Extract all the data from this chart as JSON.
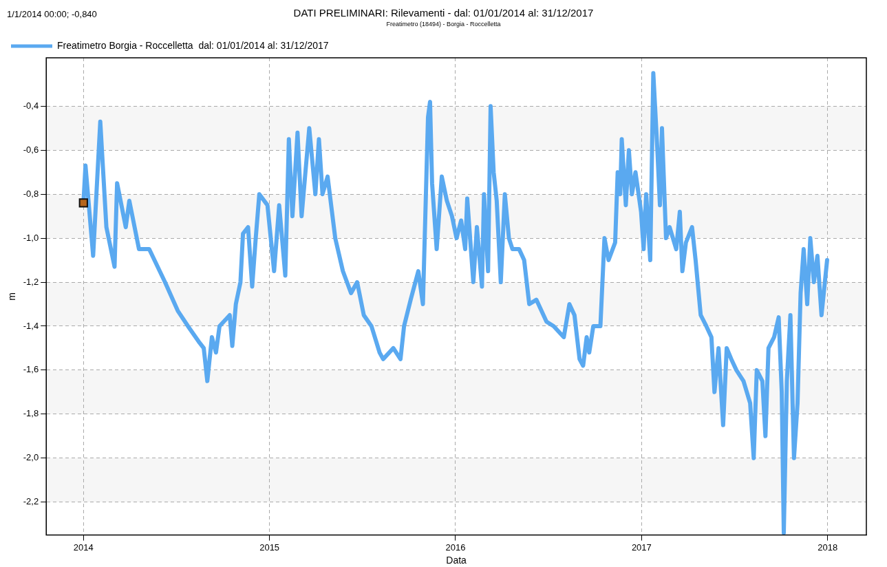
{
  "chart_data": {
    "type": "line",
    "title": "DATI PRELIMINARI: Rilevamenti -  dal: 01/01/2014 al: 31/12/2017",
    "subtitle": "Freatimetro (18494)  - Borgia - Roccelletta",
    "xlabel": "Data",
    "ylabel": "m",
    "annotations": [
      "1/1/2014 00:00; -0,840"
    ],
    "x": [
      "2014-01-01",
      "2014-01-05",
      "2014-01-20",
      "2014-02-03",
      "2014-02-15",
      "2014-03-03",
      "2014-03-08",
      "2014-03-25",
      "2014-04-01",
      "2014-04-20",
      "2014-05-10",
      "2014-06-10",
      "2014-07-05",
      "2014-07-25",
      "2014-08-15",
      "2014-08-25",
      "2014-09-01",
      "2014-09-10",
      "2014-09-18",
      "2014-09-25",
      "2014-10-15",
      "2014-10-20",
      "2014-10-27",
      "2014-11-05",
      "2014-11-10",
      "2014-11-20",
      "2014-11-28",
      "2014-12-05",
      "2014-12-12",
      "2014-12-28",
      "2015-01-10",
      "2015-01-20",
      "2015-02-01",
      "2015-02-08",
      "2015-02-15",
      "2015-02-25",
      "2015-03-05",
      "2015-03-20",
      "2015-04-01",
      "2015-04-08",
      "2015-04-15",
      "2015-04-25",
      "2015-05-10",
      "2015-05-25",
      "2015-06-10",
      "2015-06-22",
      "2015-07-05",
      "2015-07-20",
      "2015-08-05",
      "2015-08-12",
      "2015-09-01",
      "2015-09-15",
      "2015-09-22",
      "2015-10-05",
      "2015-10-20",
      "2015-10-29",
      "2015-11-08",
      "2015-11-12",
      "2015-11-16",
      "2015-11-25",
      "2015-12-05",
      "2015-12-15",
      "2015-12-25",
      "2016-01-03",
      "2016-01-12",
      "2016-01-20",
      "2016-01-24",
      "2016-02-05",
      "2016-02-12",
      "2016-02-22",
      "2016-02-26",
      "2016-03-05",
      "2016-03-10",
      "2016-03-16",
      "2016-03-22",
      "2016-03-30",
      "2016-04-07",
      "2016-04-15",
      "2016-04-22",
      "2016-05-05",
      "2016-05-15",
      "2016-05-25",
      "2016-06-08",
      "2016-06-28",
      "2016-07-12",
      "2016-08-01",
      "2016-08-12",
      "2016-08-22",
      "2016-09-01",
      "2016-09-08",
      "2016-09-15",
      "2016-09-20",
      "2016-09-28",
      "2016-10-12",
      "2016-10-20",
      "2016-10-28",
      "2016-11-10",
      "2016-11-15",
      "2016-11-20",
      "2016-11-23",
      "2016-12-01",
      "2016-12-07",
      "2016-12-13",
      "2016-12-20",
      "2016-12-31",
      "2017-01-05",
      "2017-01-10",
      "2017-01-18",
      "2017-01-24",
      "2017-02-01",
      "2017-02-06",
      "2017-02-10",
      "2017-02-18",
      "2017-02-25",
      "2017-03-10",
      "2017-03-17",
      "2017-03-22",
      "2017-03-29",
      "2017-04-10",
      "2017-04-17",
      "2017-04-27",
      "2017-05-08",
      "2017-05-18",
      "2017-05-24",
      "2017-06-01",
      "2017-06-10",
      "2017-06-17",
      "2017-06-26",
      "2017-07-06",
      "2017-07-20",
      "2017-08-02",
      "2017-08-09",
      "2017-08-15",
      "2017-08-26",
      "2017-09-01",
      "2017-09-07",
      "2017-09-18",
      "2017-09-27",
      "2017-10-03",
      "2017-10-07",
      "2017-10-13",
      "2017-10-20",
      "2017-10-27",
      "2017-11-03",
      "2017-11-09",
      "2017-11-15",
      "2017-11-22",
      "2017-11-28",
      "2017-12-05",
      "2017-12-12",
      "2017-12-20",
      "2017-12-31"
    ],
    "series": [
      {
        "type": "scatter",
        "marker": "square",
        "color": "#b5651d",
        "x": [
          "2014-01-01"
        ],
        "values": [
          -0.84
        ]
      },
      {
        "name": "Freatimetro Borgia - Roccelletta  dal: 01/01/2014 al: 31/12/2017",
        "color": "#5aa9f0",
        "values": [
          -0.84,
          -0.67,
          -1.08,
          -0.47,
          -0.95,
          -1.13,
          -0.75,
          -0.95,
          -0.83,
          -1.05,
          -1.05,
          -1.2,
          -1.33,
          -1.4,
          -1.47,
          -1.5,
          -1.65,
          -1.45,
          -1.52,
          -1.4,
          -1.35,
          -1.49,
          -1.3,
          -1.2,
          -0.98,
          -0.95,
          -1.22,
          -1.0,
          -0.8,
          -0.85,
          -1.15,
          -0.85,
          -1.17,
          -0.55,
          -0.9,
          -0.52,
          -0.9,
          -0.5,
          -0.8,
          -0.55,
          -0.8,
          -0.72,
          -1.0,
          -1.15,
          -1.25,
          -1.2,
          -1.35,
          -1.4,
          -1.52,
          -1.55,
          -1.5,
          -1.55,
          -1.4,
          -1.28,
          -1.15,
          -1.3,
          -0.45,
          -0.38,
          -0.75,
          -1.05,
          -0.72,
          -0.83,
          -0.9,
          -1.0,
          -0.92,
          -1.05,
          -0.82,
          -1.2,
          -0.95,
          -1.22,
          -0.8,
          -1.15,
          -0.4,
          -0.7,
          -0.83,
          -1.2,
          -0.8,
          -1.0,
          -1.05,
          -1.05,
          -1.1,
          -1.3,
          -1.28,
          -1.38,
          -1.4,
          -1.45,
          -1.3,
          -1.35,
          -1.55,
          -1.58,
          -1.45,
          -1.52,
          -1.4,
          -1.4,
          -1.0,
          -1.1,
          -1.02,
          -0.7,
          -0.8,
          -0.55,
          -0.85,
          -0.6,
          -0.8,
          -0.7,
          -0.88,
          -1.05,
          -0.8,
          -1.1,
          -0.25,
          -0.6,
          -0.85,
          -0.5,
          -1.0,
          -0.95,
          -1.05,
          -0.88,
          -1.15,
          -1.02,
          -0.95,
          -1.1,
          -1.35,
          -1.4,
          -1.45,
          -1.7,
          -1.5,
          -1.85,
          -1.5,
          -1.55,
          -1.6,
          -1.65,
          -1.75,
          -2.0,
          -1.6,
          -1.65,
          -1.9,
          -1.5,
          -1.45,
          -1.36,
          -1.7,
          -2.34,
          -1.65,
          -1.35,
          -2.0,
          -1.75,
          -1.25,
          -1.05,
          -1.3,
          -1.0,
          -1.2,
          -1.08,
          -1.35,
          -1.1
        ]
      }
    ],
    "xlim": [
      "2013-10-20",
      "2018-03-18"
    ],
    "xticks": [
      "2014",
      "2015",
      "2016",
      "2017",
      "2018"
    ],
    "ylim": [
      -2.35,
      -0.18
    ],
    "yticks": [
      {
        "value": -2.2,
        "label": "-2,2"
      },
      {
        "value": -2.0,
        "label": "-2,0"
      },
      {
        "value": -1.8,
        "label": "-1,8"
      },
      {
        "value": -1.6,
        "label": "-1,6"
      },
      {
        "value": -1.4,
        "label": "-1,4"
      },
      {
        "value": -1.2,
        "label": "-1,2"
      },
      {
        "value": -1.0,
        "label": "-1,0"
      },
      {
        "value": -0.8,
        "label": "-0,8"
      },
      {
        "value": -0.6,
        "label": "-0,6"
      },
      {
        "value": -0.4,
        "label": "-0,4"
      }
    ],
    "grid": true,
    "legend": "top left",
    "marker": "none",
    "line_style": "solid"
  }
}
